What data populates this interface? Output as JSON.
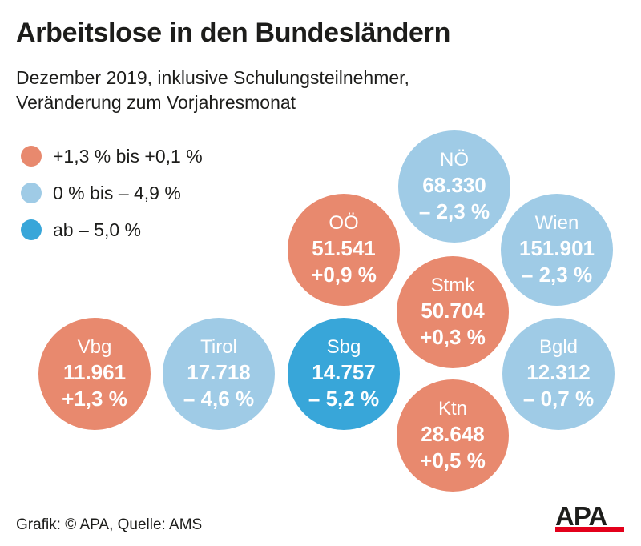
{
  "title": "Arbeitslose in den Bundesländern",
  "subtitle_line1": "Dezember 2019, inklusive Schulungsteilnehmer,",
  "subtitle_line2": "Veränderung zum Vorjahresmonat",
  "legend": [
    {
      "label": "+1,3 % bis +0,1 %",
      "color": "#e8896e"
    },
    {
      "label": "0 % bis – 4,9 %",
      "color": "#9fcbe6"
    },
    {
      "label": "ab – 5,0 %",
      "color": "#38a6d9"
    }
  ],
  "chart_data": {
    "type": "bubble",
    "title": "Arbeitslose in den Bundesländern",
    "subtitle": "Dezember 2019, inklusive Schulungsteilnehmer, Veränderung zum Vorjahresmonat",
    "series": [
      {
        "state": "NÖ",
        "count_label": "68.330",
        "change_label": "– 2,3 %",
        "value": 68330,
        "change": -2.3,
        "category": 1
      },
      {
        "state": "OÖ",
        "count_label": "51.541",
        "change_label": "+0,9 %",
        "value": 51541,
        "change": 0.9,
        "category": 0
      },
      {
        "state": "Wien",
        "count_label": "151.901",
        "change_label": "– 2,3 %",
        "value": 151901,
        "change": -2.3,
        "category": 1
      },
      {
        "state": "Stmk",
        "count_label": "50.704",
        "change_label": "+0,3 %",
        "value": 50704,
        "change": 0.3,
        "category": 0
      },
      {
        "state": "Vbg",
        "count_label": "11.961",
        "change_label": "+1,3 %",
        "value": 11961,
        "change": 1.3,
        "category": 0
      },
      {
        "state": "Tirol",
        "count_label": "17.718",
        "change_label": "– 4,6 %",
        "value": 17718,
        "change": -4.6,
        "category": 1
      },
      {
        "state": "Sbg",
        "count_label": "14.757",
        "change_label": "– 5,2 %",
        "value": 14757,
        "change": -5.2,
        "category": 2
      },
      {
        "state": "Bgld",
        "count_label": "12.312",
        "change_label": "– 0,7 %",
        "value": 12312,
        "change": -0.7,
        "category": 1
      },
      {
        "state": "Ktn",
        "count_label": "28.648",
        "change_label": "+0,5 %",
        "value": 28648,
        "change": 0.5,
        "category": 0
      }
    ]
  },
  "source": "Grafik: © APA, Quelle: AMS",
  "logo_text": "APA"
}
